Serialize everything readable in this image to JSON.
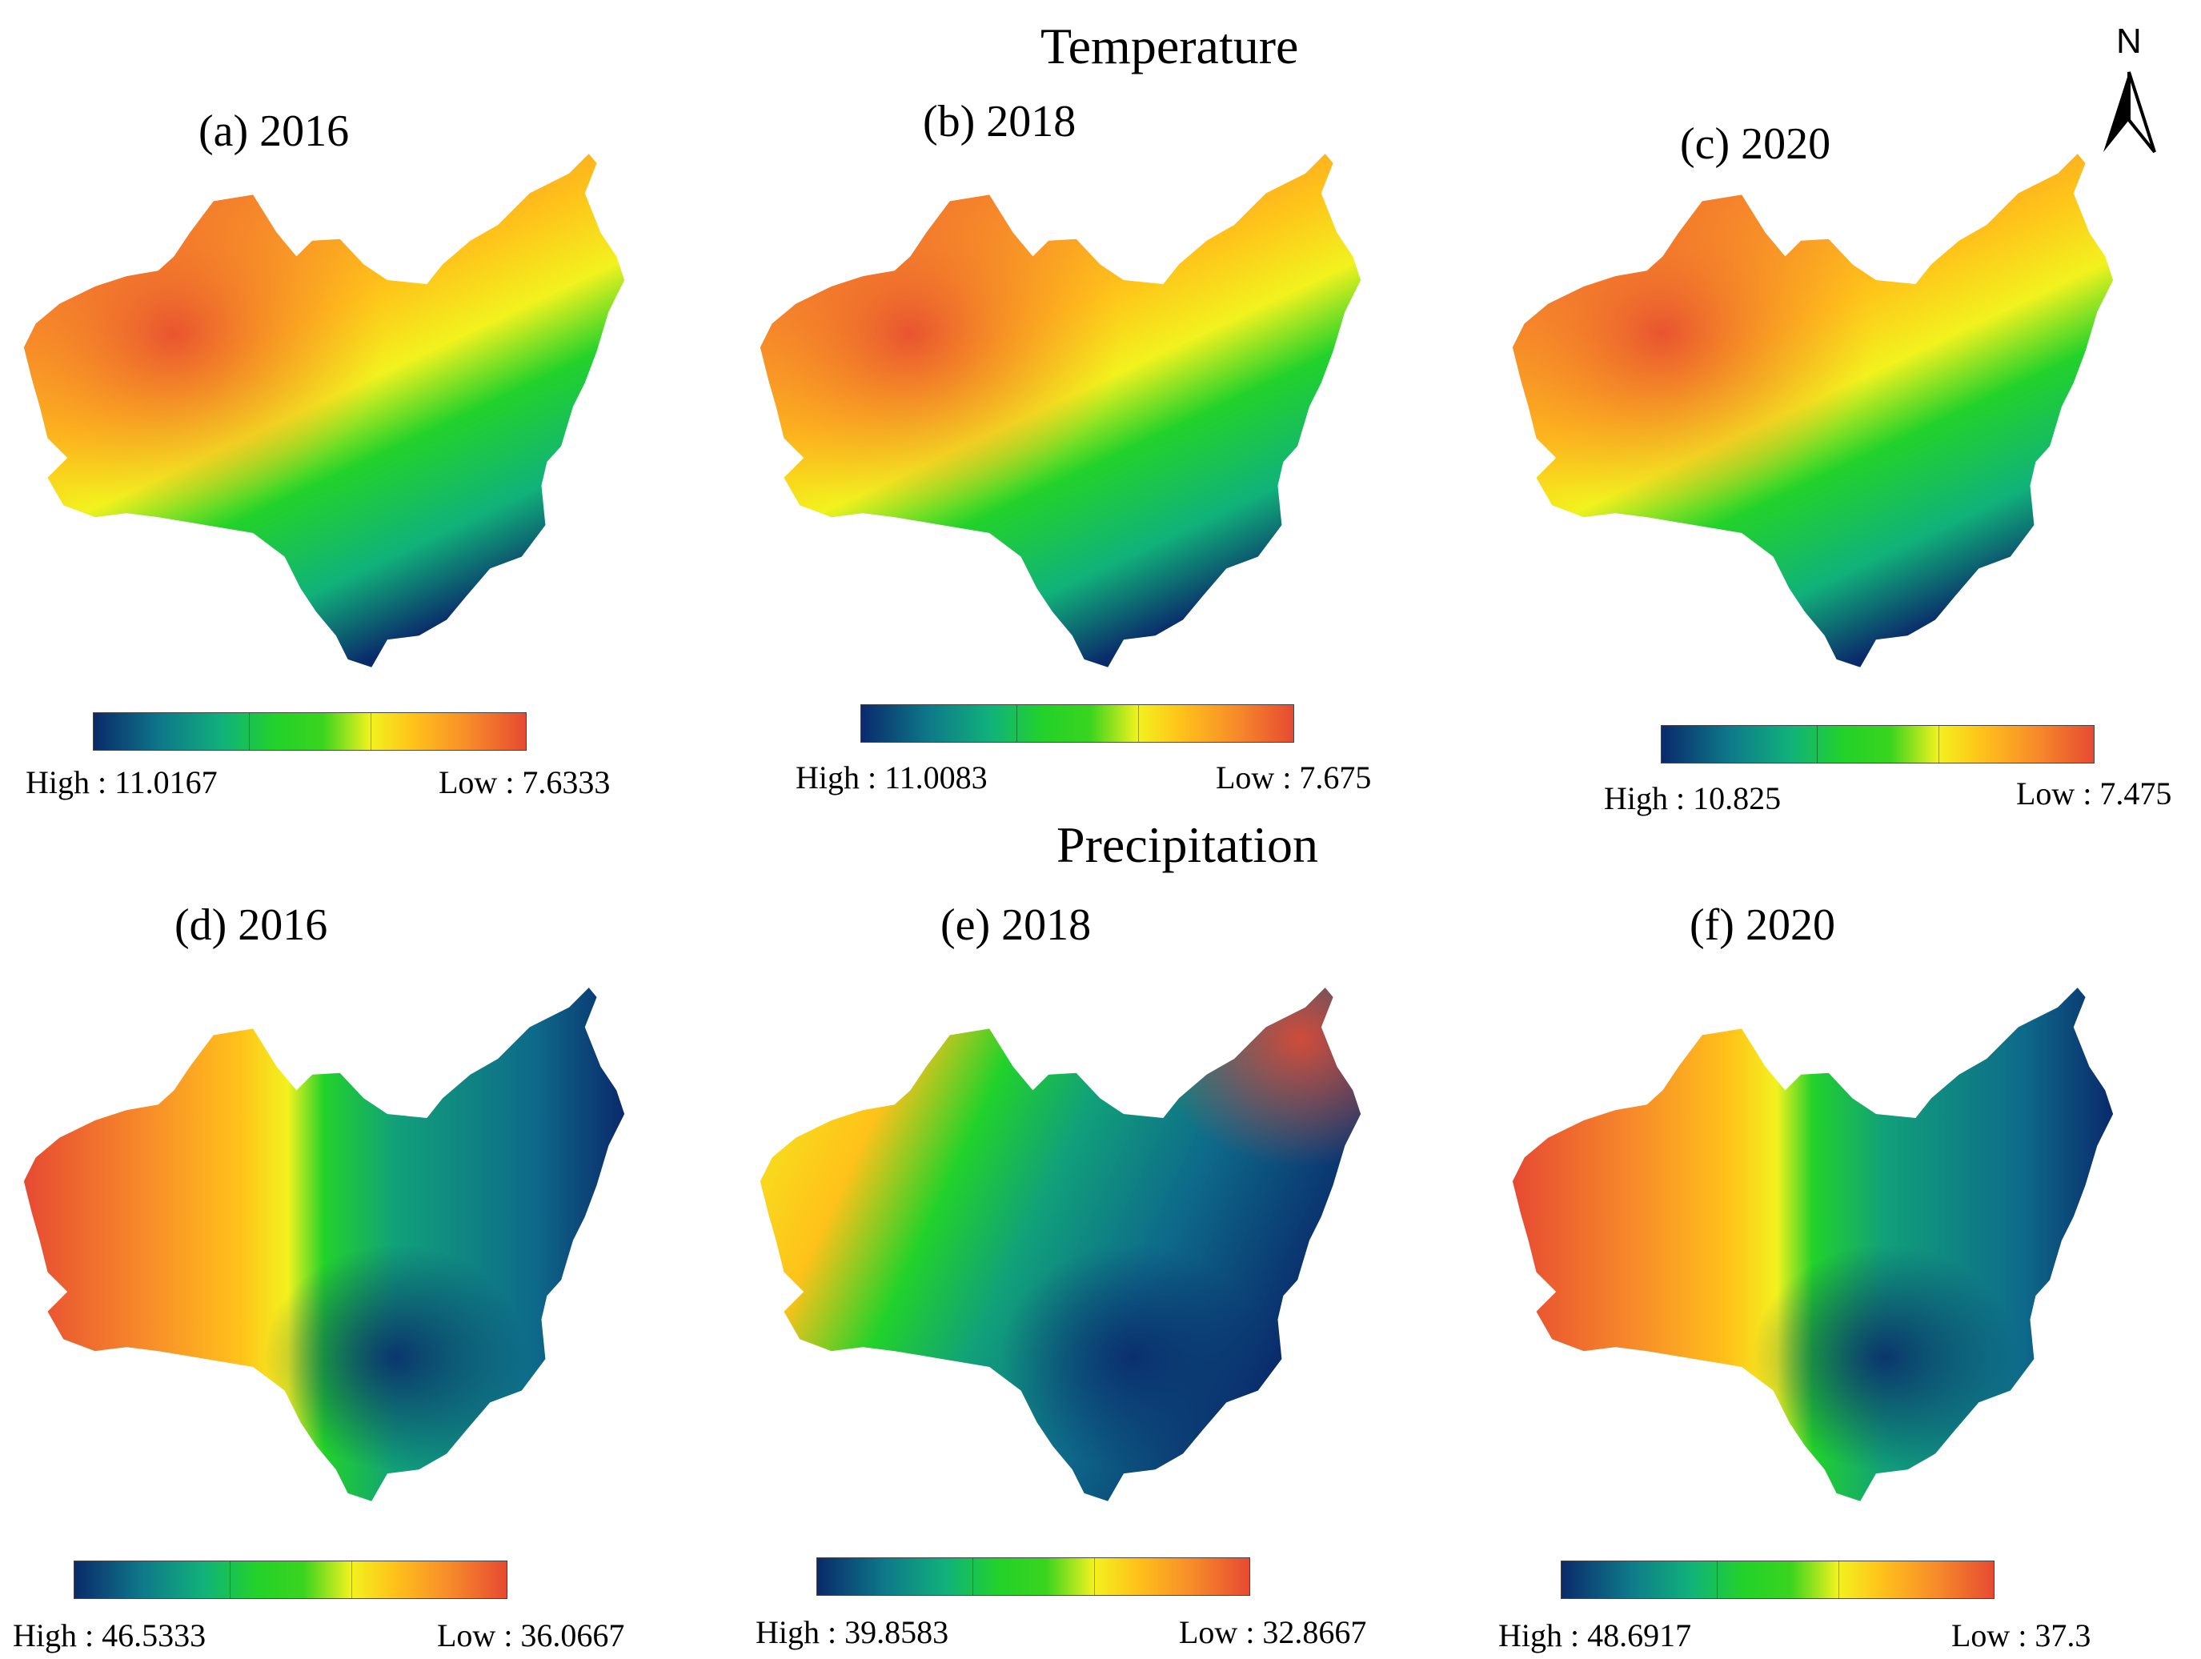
{
  "north_arrow": {
    "label": "N"
  },
  "temperature": {
    "title": "Temperature",
    "panels": [
      {
        "id": "a",
        "label": "(a) 2016",
        "high": "High : 11.0167",
        "low": "Low : 7.6333"
      },
      {
        "id": "b",
        "label": "(b)  2018",
        "high": "High : 11.0083",
        "low": "Low : 7.675"
      },
      {
        "id": "c",
        "label": "(c)  2020",
        "high": "High : 10.825",
        "low": "Low : 7.475"
      }
    ]
  },
  "precipitation": {
    "title": "Precipitation",
    "panels": [
      {
        "id": "d",
        "label": "(d)  2016",
        "high": "High : 46.5333",
        "low": "Low : 36.0667"
      },
      {
        "id": "e",
        "label": "(e)  2018",
        "high": "High : 39.8583",
        "low": "Low : 32.8667"
      },
      {
        "id": "f",
        "label": "(f)  2020",
        "high": "High : 48.6917",
        "low": "Low : 37.3"
      }
    ]
  },
  "colors": {
    "low_blue": "#0a2a6b",
    "teal": "#0e7a8a",
    "green": "#22d22a",
    "yellow": "#f2f21e",
    "orange": "#f78a2a",
    "red": "#e64a32"
  }
}
